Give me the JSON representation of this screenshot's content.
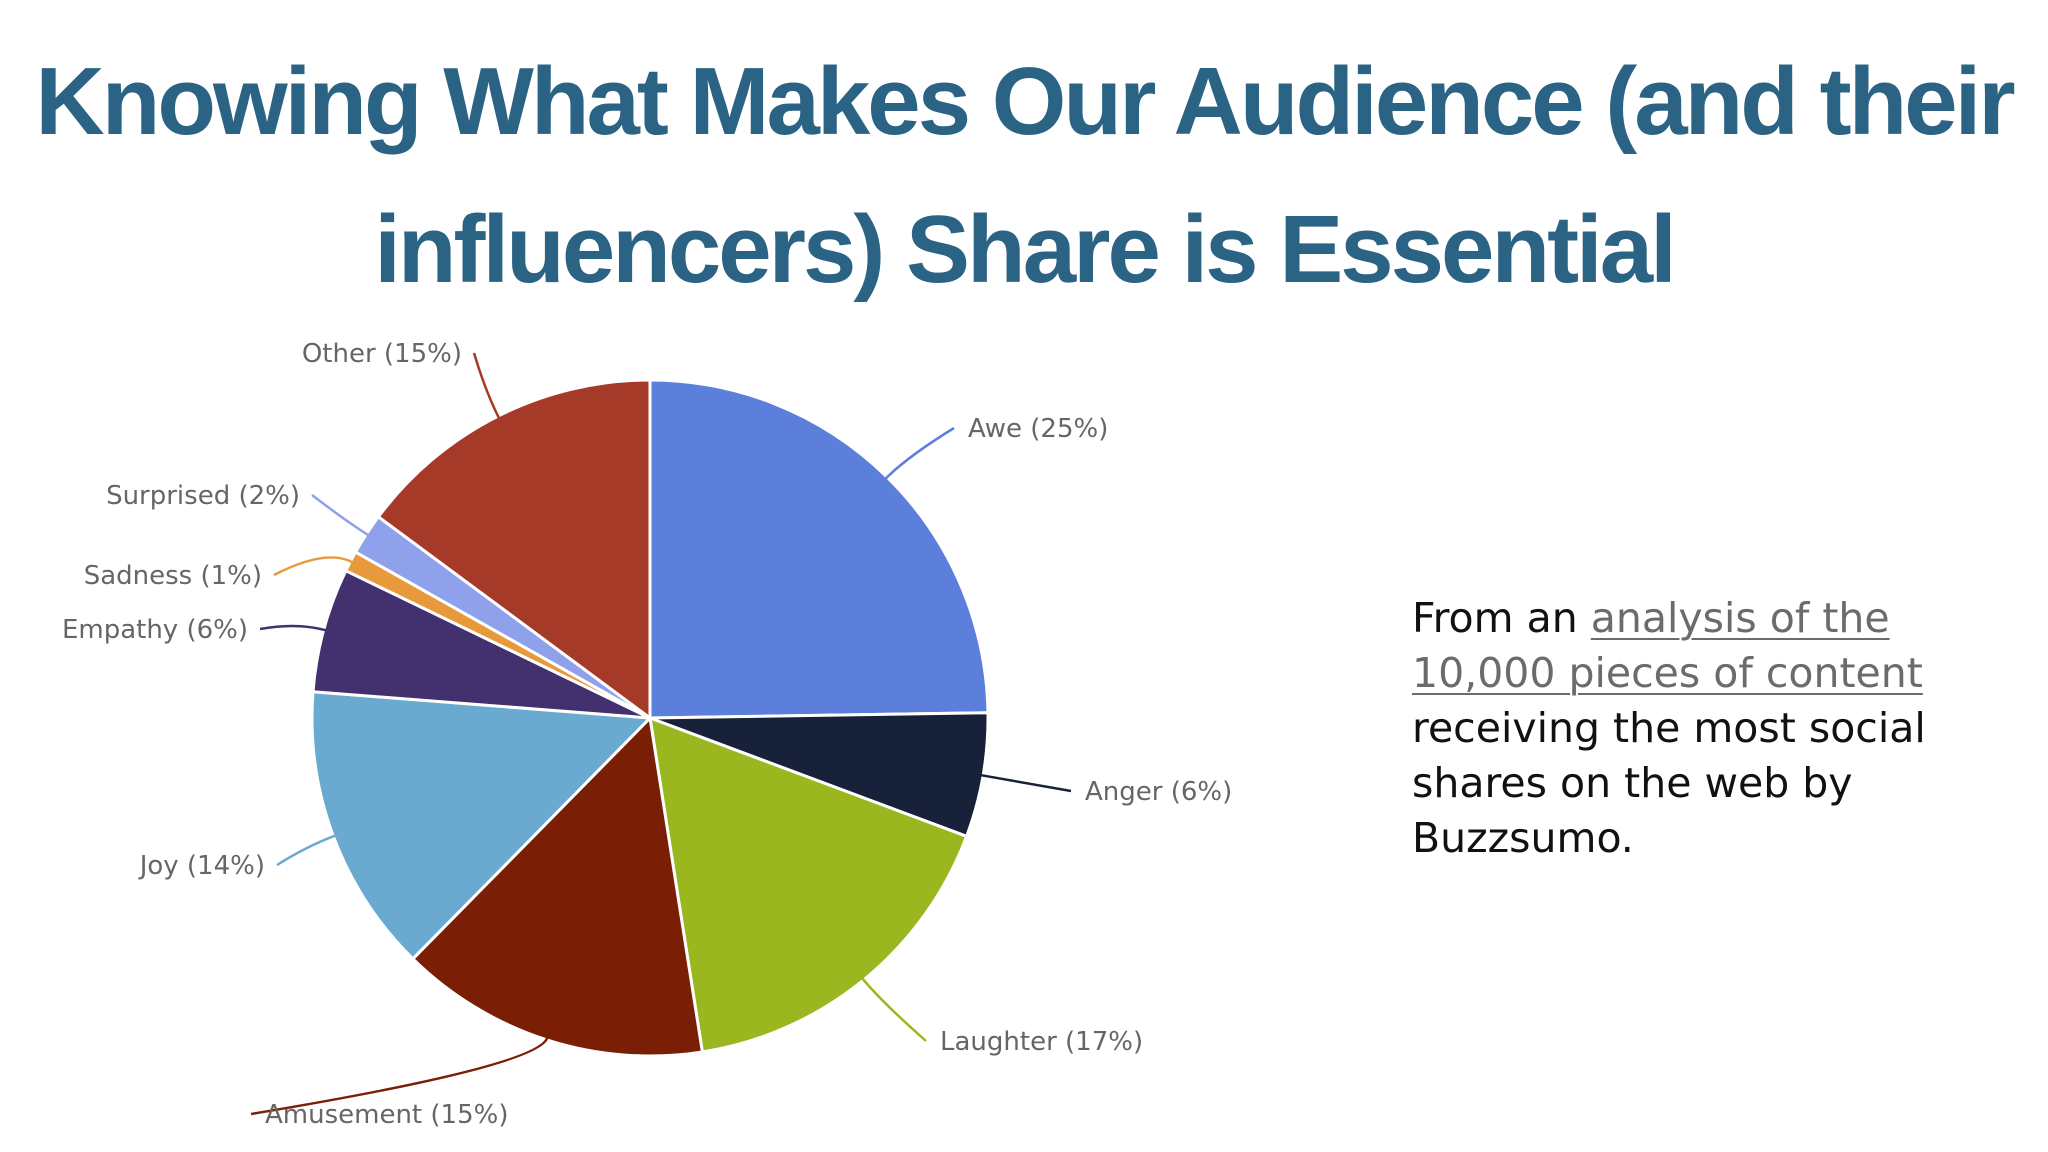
{
  "slide": {
    "title_line1": "Knowing What Makes Our Audience (and their",
    "title_line2": "influencers) Share is Essential",
    "caption_prefix": "From an ",
    "caption_link": "analysis of the 10,000 pieces of content",
    "caption_suffix": " receiving the most social shares on the web by Buzzsumo.",
    "link_color": "#6b6b6b",
    "title_color": "#2b6385"
  },
  "chart_data": {
    "type": "pie",
    "title": "",
    "slices": [
      {
        "name": "Awe",
        "value": 25,
        "label": "Awe (25%)",
        "color": "#5b7fdb"
      },
      {
        "name": "Anger",
        "value": 6,
        "label": "Anger (6%)",
        "color": "#17213a"
      },
      {
        "name": "Laughter",
        "value": 17,
        "label": "Laughter (17%)",
        "color": "#9bb71f"
      },
      {
        "name": "Amusement",
        "value": 15,
        "label": "Amusement (15%)",
        "color": "#7a1e06"
      },
      {
        "name": "Joy",
        "value": 14,
        "label": "Joy (14%)",
        "color": "#6aaad1"
      },
      {
        "name": "Empathy",
        "value": 6,
        "label": "Empathy (6%)",
        "color": "#43306f"
      },
      {
        "name": "Sadness",
        "value": 1,
        "label": "Sadness (1%)",
        "color": "#e69a3c"
      },
      {
        "name": "Surprised",
        "value": 2,
        "label": "Surprised (2%)",
        "color": "#8ea1ea"
      },
      {
        "name": "Other",
        "value": 15,
        "label": "Other (15%)",
        "color": "#a63a29"
      }
    ]
  }
}
